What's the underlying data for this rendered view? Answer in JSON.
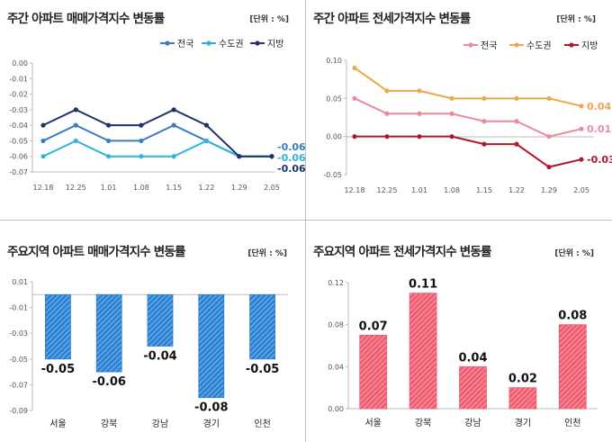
{
  "chart_data": [
    {
      "type": "line",
      "title": "주간 아파트 매매가격지수 변동률",
      "unit": "[단위 : %]",
      "x": [
        "12.18",
        "12.25",
        "1.01",
        "1.08",
        "1.15",
        "1.22",
        "1.29",
        "2.05"
      ],
      "ylim": [
        -0.07,
        0.0
      ],
      "yticks": [
        "0.00",
        "-0.01",
        "-0.02",
        "-0.03",
        "-0.04",
        "-0.05",
        "-0.06",
        "-0.07"
      ],
      "series": [
        {
          "name": "전국",
          "color": "#3a7cc4",
          "values": [
            -0.05,
            -0.04,
            -0.05,
            -0.05,
            -0.04,
            -0.05,
            -0.06,
            -0.06
          ],
          "end_label": "-0.06"
        },
        {
          "name": "수도권",
          "color": "#2eb5d9",
          "values": [
            -0.06,
            -0.05,
            -0.06,
            -0.06,
            -0.06,
            -0.05,
            -0.06,
            -0.06
          ],
          "end_label": "-0.06"
        },
        {
          "name": "지방",
          "color": "#1f3466",
          "values": [
            -0.04,
            -0.03,
            -0.04,
            -0.04,
            -0.03,
            -0.04,
            -0.06,
            -0.06
          ],
          "end_label": "-0.06"
        }
      ]
    },
    {
      "type": "line",
      "title": "주간 아파트 전세가격지수 변동률",
      "unit": "[단위 : %]",
      "x": [
        "12.18",
        "12.25",
        "1.01",
        "1.08",
        "1.15",
        "1.22",
        "1.29",
        "2.05"
      ],
      "ylim": [
        -0.05,
        0.1
      ],
      "yticks": [
        "0.10",
        "0.05",
        "0.00",
        "-0.05"
      ],
      "series": [
        {
          "name": "전국",
          "color": "#ec8a9b",
          "values": [
            0.05,
            0.03,
            0.03,
            0.03,
            0.02,
            0.02,
            0.0,
            0.01
          ],
          "end_label": "0.01"
        },
        {
          "name": "수도권",
          "color": "#f0a64a",
          "values": [
            0.09,
            0.06,
            0.06,
            0.05,
            0.05,
            0.05,
            0.05,
            0.04
          ],
          "end_label": "0.04"
        },
        {
          "name": "지방",
          "color": "#b0182a",
          "values": [
            0.0,
            0.0,
            0.0,
            0.0,
            -0.01,
            -0.01,
            -0.04,
            -0.03
          ],
          "end_label": "-0.03"
        }
      ]
    },
    {
      "type": "bar",
      "title": "주요지역 아파트 매매가격지수 변동률",
      "unit": "[단위 : %]",
      "categories": [
        "서울",
        "강북",
        "강남",
        "경기",
        "인천"
      ],
      "values": [
        -0.05,
        -0.06,
        -0.04,
        -0.08,
        -0.05
      ],
      "labels": [
        "-0.05",
        "-0.06",
        "-0.04",
        "-0.08",
        "-0.05"
      ],
      "color": "#2a7fd1",
      "ylim": [
        -0.09,
        0.01
      ],
      "yticks": [
        "0.01",
        "-0.01",
        "-0.03",
        "-0.05",
        "-0.07",
        "-0.09"
      ]
    },
    {
      "type": "bar",
      "title": "주요지역 아파트 전세가격지수 변동률",
      "unit": "[단위 : %]",
      "categories": [
        "서울",
        "강북",
        "강남",
        "경기",
        "인천"
      ],
      "values": [
        0.07,
        0.11,
        0.04,
        0.02,
        0.08
      ],
      "labels": [
        "0.07",
        "0.11",
        "0.04",
        "0.02",
        "0.08"
      ],
      "color": "#f05a6e",
      "ylim": [
        0.0,
        0.12
      ],
      "yticks": [
        "0.12",
        "0.08",
        "0.04",
        "0.00"
      ]
    }
  ]
}
